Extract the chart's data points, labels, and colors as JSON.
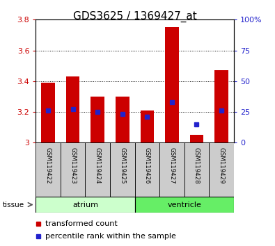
{
  "title": "GDS3625 / 1369427_at",
  "samples": [
    "GSM119422",
    "GSM119423",
    "GSM119424",
    "GSM119425",
    "GSM119426",
    "GSM119427",
    "GSM119428",
    "GSM119429"
  ],
  "red_values": [
    3.39,
    3.43,
    3.3,
    3.3,
    3.21,
    3.75,
    3.05,
    3.47
  ],
  "blue_values_left": [
    3.21,
    3.22,
    3.2,
    3.185,
    3.17,
    3.265,
    3.12,
    3.21
  ],
  "ymin": 3.0,
  "ymax": 3.8,
  "y_ticks_left": [
    3.0,
    3.2,
    3.4,
    3.6,
    3.8
  ],
  "y_ticks_left_labels": [
    "3",
    "3.2",
    "3.4",
    "3.6",
    "3.8"
  ],
  "y_ticks_right": [
    0,
    25,
    50,
    75,
    100
  ],
  "y_ticks_right_labels": [
    "0",
    "25",
    "50",
    "75",
    "100%"
  ],
  "groups": [
    {
      "name": "atrium",
      "start": 0,
      "end": 4,
      "color": "#ccffcc"
    },
    {
      "name": "ventricle",
      "start": 4,
      "end": 8,
      "color": "#66ee66"
    }
  ],
  "bar_width": 0.55,
  "red_color": "#cc0000",
  "blue_color": "#2222cc",
  "bg_color": "#ffffff",
  "plot_bg": "#ffffff",
  "label_bg": "#cccccc",
  "title_fontsize": 11,
  "tick_fontsize": 8,
  "legend_fontsize": 8
}
